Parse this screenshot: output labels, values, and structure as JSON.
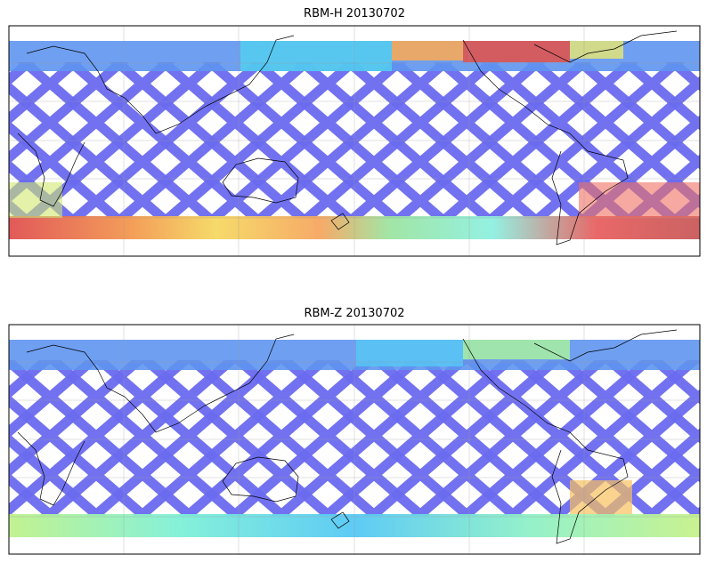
{
  "panels": [
    {
      "title": "RBM-H 20130702"
    },
    {
      "title": "RBM-Z 20130702"
    }
  ]
}
